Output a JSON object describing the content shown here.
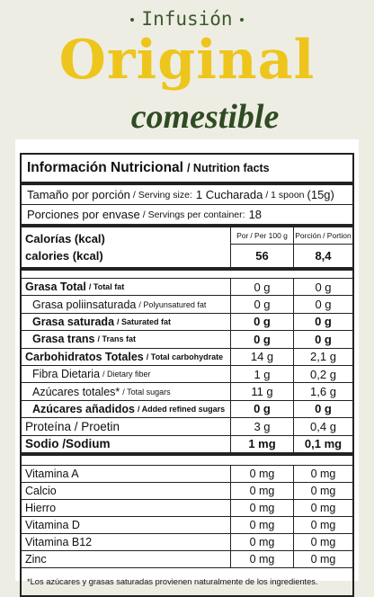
{
  "header": {
    "kicker": "Infusión",
    "title": "Original",
    "subtitle": "comestible"
  },
  "panel": {
    "title": "Información Nutricional",
    "title_en": "/ Nutrition facts",
    "serving_size": {
      "label": "Tamaño por porción",
      "label_en": "/ Serving size:",
      "value": "1 Cucharada",
      "value_en": "/ 1 spoon",
      "value_grams": "(15g)"
    },
    "servings": {
      "label": "Porciones por envase",
      "label_en": "/ Servings per container:",
      "value": "18"
    },
    "columns": {
      "per_100g": "Por",
      "per_100g_en": "/ Per 100 g",
      "per_portion": "Porción",
      "per_portion_en": "/ Portion"
    },
    "calories": {
      "label": "Calorías (kcal)",
      "label_en": "calories (kcal)",
      "per_100g": "56",
      "per_portion": "8,4"
    },
    "nutrients": [
      {
        "name": "Grasa Total",
        "name_en": "/ Total fat",
        "per_100g": "0 g",
        "per_portion": "0 g"
      },
      {
        "name": "Grasa poliinsaturada",
        "name_en": "/ Polyunsatured fat",
        "per_100g": "0 g",
        "per_portion": "0 g"
      },
      {
        "name": "Grasa saturada",
        "name_en": "/ Saturated fat",
        "per_100g": "0 g",
        "per_portion": "0 g"
      },
      {
        "name": "Grasa trans",
        "name_en": "/ Trans fat",
        "per_100g": "0 g",
        "per_portion": "0 g"
      },
      {
        "name": "Carbohidratos Totales",
        "name_en": "/ Total carbohydrate",
        "per_100g": "14 g",
        "per_portion": "2,1 g"
      },
      {
        "name": "Fibra Dietaria",
        "name_en": "/ Dietary fiber",
        "per_100g": "1 g",
        "per_portion": "0,2 g"
      },
      {
        "name": "Azúcares totales*",
        "name_en": "/ Total sugars",
        "per_100g": "11 g",
        "per_portion": "1,6 g"
      },
      {
        "name": "Azúcares añadidos",
        "name_en": "/ Added refined sugars",
        "per_100g": "0 g",
        "per_portion": "0 g"
      },
      {
        "name": "Proteína / Proetin",
        "per_100g": "3 g",
        "per_portion": "0,4 g"
      },
      {
        "name": "Sodio /Sodium",
        "per_100g": "1 mg",
        "per_portion": "0,1 mg"
      }
    ],
    "vitamins": [
      {
        "name": "Vitamina A",
        "per_100g": "0 mg",
        "per_portion": "0 mg"
      },
      {
        "name": "Calcio",
        "per_100g": "0 mg",
        "per_portion": "0 mg"
      },
      {
        "name": "Hierro",
        "per_100g": "0 mg",
        "per_portion": "0 mg"
      },
      {
        "name": "Vitamina D",
        "per_100g": "0 mg",
        "per_portion": "0 mg"
      },
      {
        "name": "Vitamina B12",
        "per_100g": "0 mg",
        "per_portion": "0 mg"
      },
      {
        "name": "Zinc",
        "per_100g": "0 mg",
        "per_portion": "0 mg"
      }
    ],
    "footnote": "*Los azúcares y grasas saturadas provienen naturalmente de los ingredientes."
  }
}
